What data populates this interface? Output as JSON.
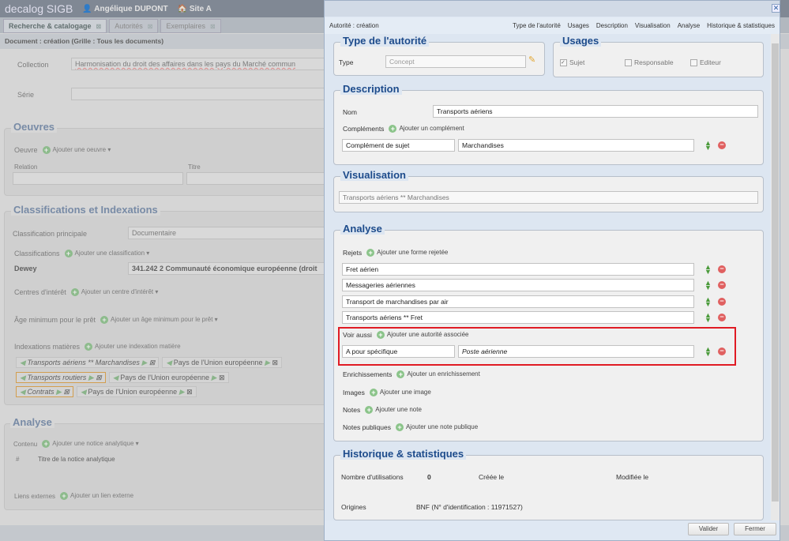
{
  "app": {
    "logo": "decalog SIGB",
    "user": "Angélique DUPONT",
    "site": "Site A"
  },
  "tabs": [
    {
      "label": "Recherche & catalogage"
    },
    {
      "label": "Autorités"
    },
    {
      "label": "Exemplaires"
    }
  ],
  "breadcrumb": "Document : création (Grille : Tous les documents)",
  "doc": {
    "collection_label": "Collection",
    "collection_value": "Harmonisation du droit des affaires dans les pays du Marché commun",
    "serie_label": "Série",
    "oeuvres": {
      "legend": "Oeuvres",
      "label": "Oeuvre",
      "add": "Ajouter une oeuvre",
      "col_relation": "Relation",
      "col_titre": "Titre"
    },
    "classif": {
      "legend": "Classifications et Indexations",
      "principale_label": "Classification principale",
      "principale_value": "Documentaire",
      "classifications_label": "Classifications",
      "add_classification": "Ajouter une classification",
      "dewey_label": "Dewey",
      "dewey_value": "341.242 2 Communauté économique européenne (droit",
      "centres_label": "Centres d'intérêt",
      "add_centre": "Ajouter un centre d'intérêt",
      "age_label": "Âge minimum pour le prêt",
      "add_age": "Ajouter un âge minimum pour le prêt",
      "index_label": "Indexations matières",
      "add_index": "Ajouter une indexation matière",
      "index_rows": [
        [
          "Transports aériens ** Marchandises",
          "Pays de l'Union européenne"
        ],
        [
          "Transports routiers",
          "Pays de l'Union européenne"
        ],
        [
          "Contrats",
          "Pays de l'Union européenne"
        ]
      ]
    },
    "analyse": {
      "legend": "Analyse",
      "contenu_label": "Contenu",
      "add_notice": "Ajouter une notice analytique",
      "col_num": "#",
      "col_titre": "Titre de la notice analytique",
      "liens_label": "Liens externes",
      "add_lien": "Ajouter un lien externe"
    }
  },
  "modal": {
    "title": "Autorité : création",
    "nav": [
      "Type de l'autorité",
      "Usages",
      "Description",
      "Visualisation",
      "Analyse",
      "Historique & statistiques"
    ],
    "type": {
      "legend": "Type de l'autorité",
      "label": "Type",
      "value": "Concept"
    },
    "usages": {
      "legend": "Usages",
      "options": [
        {
          "label": "Sujet",
          "checked": true
        },
        {
          "label": "Responsable",
          "checked": false
        },
        {
          "label": "Editeur",
          "checked": false
        }
      ]
    },
    "description": {
      "legend": "Description",
      "nom_label": "Nom",
      "nom_value": "Transports aériens",
      "complements_label": "Compléments",
      "add_complement": "Ajouter un complément",
      "complement_type": "Complément de sujet",
      "complement_value": "Marchandises"
    },
    "visualisation": {
      "legend": "Visualisation",
      "value": "Transports aériens ** Marchandises"
    },
    "analyse": {
      "legend": "Analyse",
      "rejets_label": "Rejets",
      "add_rejet": "Ajouter une forme rejetée",
      "rejets": [
        "Fret aérien",
        "Messageries aériennes",
        "Transport de marchandises par air",
        "Transports aériens ** Fret"
      ],
      "voir_label": "Voir aussi",
      "add_voir": "Ajouter une autorité associée",
      "voir_type": "A pour spécifique",
      "voir_value": "Poste aérienne",
      "enrich_label": "Enrichissements",
      "add_enrich": "Ajouter un enrichissement",
      "images_label": "Images",
      "add_image": "Ajouter une image",
      "notes_label": "Notes",
      "add_note": "Ajouter une note",
      "notes_pub_label": "Notes publiques",
      "add_note_pub": "Ajouter une note publique"
    },
    "historique": {
      "legend": "Historique & statistiques",
      "utilisations_label": "Nombre d'utilisations",
      "utilisations_value": "0",
      "creee_label": "Créée le",
      "modifiee_label": "Modifiée le",
      "origines_label": "Origines",
      "origines_value": "BNF (N° d'identification : 11971527)"
    },
    "buttons": {
      "valider": "Valider",
      "fermer": "Fermer"
    },
    "highlight_color": "#e01b24"
  }
}
